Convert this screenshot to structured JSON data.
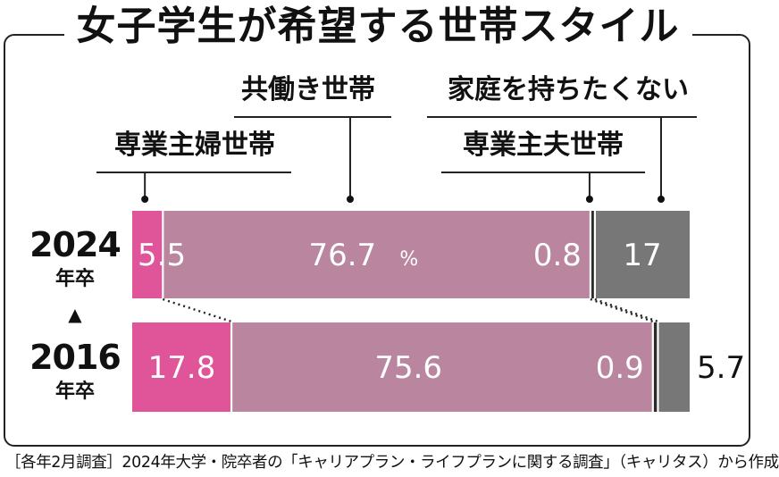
{
  "header": {
    "title": "女子学生が希望する世帯スタイル"
  },
  "footnote": "［各年2月調査］2024年大学・院卒者の「キャリアプラン・ライフプランに関する調査」（キャリタス）から作成",
  "chart_data": {
    "type": "bar",
    "stacked": true,
    "orientation": "horizontal",
    "percent_unit": "%",
    "categories": [
      {
        "year": "2024",
        "suffix": "年卒"
      },
      {
        "year": "2016",
        "suffix": "年卒"
      }
    ],
    "series": [
      {
        "name": "専業主婦世帯",
        "color": "#e0559a",
        "values": [
          5.5,
          17.8
        ],
        "labels": [
          "5.5",
          "17.8"
        ]
      },
      {
        "name": "共働き世帯",
        "color": "#b9859f",
        "values": [
          76.7,
          75.6
        ],
        "labels": [
          "76.7",
          "75.6"
        ]
      },
      {
        "name": "専業主夫世帯",
        "color": "#2a2a2a",
        "values": [
          0.8,
          0.9
        ],
        "labels": [
          "0.8",
          "0.9"
        ]
      },
      {
        "name": "家庭を持ちたくない",
        "color": "#777777",
        "values": [
          17,
          5.7
        ],
        "labels": [
          "17",
          "5.7"
        ]
      }
    ],
    "arrow": "▲",
    "xlim": [
      0,
      100
    ],
    "grid": false,
    "legend": "callout-labels-top"
  }
}
